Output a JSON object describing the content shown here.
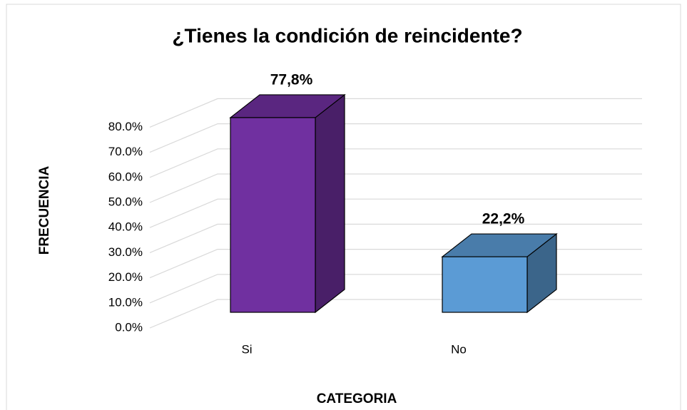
{
  "chart_data": {
    "type": "bar3d",
    "title": "¿Tienes la condición de reincidente?",
    "x_label": "CATEGORIA",
    "y_label": "FRECUENCIA",
    "categories": [
      "Si",
      "No"
    ],
    "values": [
      77.8,
      22.2
    ],
    "value_labels": [
      "77,8%",
      "22,2%"
    ],
    "colors": [
      "#7030a0",
      "#5b9bd5"
    ],
    "ylim": [
      0,
      100
    ],
    "yticks": [
      {
        "value": 0,
        "label": "0.0%"
      },
      {
        "value": 10,
        "label": "10.0%"
      },
      {
        "value": 20,
        "label": "20.0%"
      },
      {
        "value": 30,
        "label": "30.0%"
      },
      {
        "value": 40,
        "label": "40.0%"
      },
      {
        "value": 50,
        "label": "50.0%"
      },
      {
        "value": 60,
        "label": "60.0%"
      },
      {
        "value": 70,
        "label": "70.0%"
      },
      {
        "value": 80,
        "label": "80.0%"
      }
    ],
    "grid": true
  }
}
